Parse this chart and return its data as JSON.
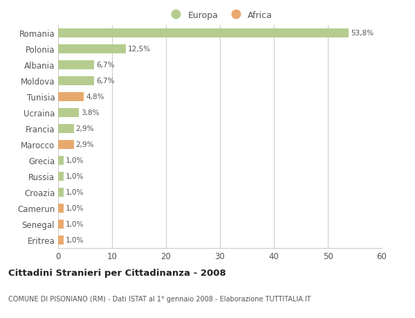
{
  "categories": [
    "Romania",
    "Polonia",
    "Albania",
    "Moldova",
    "Tunisia",
    "Ucraina",
    "Francia",
    "Marocco",
    "Grecia",
    "Russia",
    "Croazia",
    "Camerun",
    "Senegal",
    "Eritrea"
  ],
  "values": [
    53.8,
    12.5,
    6.7,
    6.7,
    4.8,
    3.8,
    2.9,
    2.9,
    1.0,
    1.0,
    1.0,
    1.0,
    1.0,
    1.0
  ],
  "labels": [
    "53,8%",
    "12,5%",
    "6,7%",
    "6,7%",
    "4,8%",
    "3,8%",
    "2,9%",
    "2,9%",
    "1,0%",
    "1,0%",
    "1,0%",
    "1,0%",
    "1,0%",
    "1,0%"
  ],
  "continents": [
    "Europa",
    "Europa",
    "Europa",
    "Europa",
    "Africa",
    "Europa",
    "Europa",
    "Africa",
    "Europa",
    "Europa",
    "Europa",
    "Africa",
    "Africa",
    "Africa"
  ],
  "color_europa": "#b5cc8e",
  "color_africa": "#e8a96e",
  "bg_color": "#ffffff",
  "grid_color": "#cccccc",
  "title": "Cittadini Stranieri per Cittadinanza - 2008",
  "subtitle": "COMUNE DI PISONIANO (RM) - Dati ISTAT al 1° gennaio 2008 - Elaborazione TUTTITALIA.IT",
  "xlim": [
    0,
    60
  ],
  "xticks": [
    0,
    10,
    20,
    30,
    40,
    50,
    60
  ],
  "legend_europa": "Europa",
  "legend_africa": "Africa"
}
